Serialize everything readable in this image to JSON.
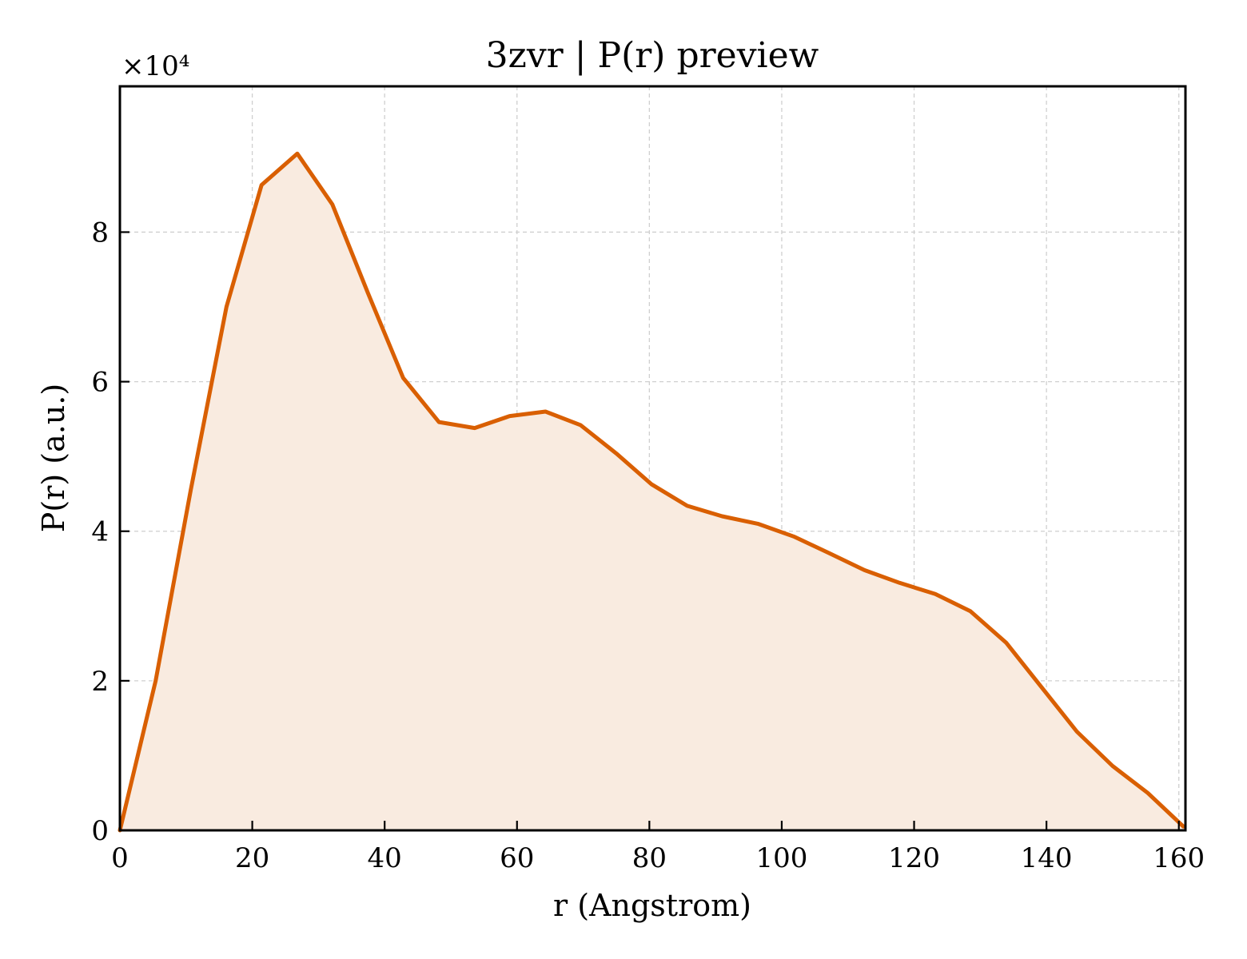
{
  "chart_data": {
    "type": "area",
    "title": "3zvr | P(r) preview",
    "xlabel": "r (Angstrom)",
    "ylabel": "P(r) (a.u.)",
    "y_multiplier_label": "×10⁴",
    "xlim": [
      0,
      161
    ],
    "ylim": [
      0,
      99500
    ],
    "x_ticks": [
      0,
      20,
      40,
      60,
      80,
      100,
      120,
      140,
      160
    ],
    "y_ticks": [
      0,
      20000,
      40000,
      60000,
      80000
    ],
    "x_tick_labels": [
      "0",
      "20",
      "40",
      "60",
      "80",
      "100",
      "120",
      "140",
      "160"
    ],
    "y_tick_labels": [
      "0",
      "2",
      "4",
      "6",
      "8"
    ],
    "grid": true,
    "line_color": "#d95f02",
    "fill_color": "#f9ebe0",
    "series": [
      {
        "x": [
          0,
          5.4,
          10.7,
          16.1,
          21.4,
          26.8,
          32.1,
          37.5,
          42.8,
          48.2,
          53.6,
          58.9,
          64.3,
          69.6,
          75.0,
          80.3,
          85.7,
          91.0,
          96.4,
          101.8,
          107.1,
          112.5,
          117.8,
          123.2,
          128.5,
          133.9,
          139.2,
          144.6,
          150.0,
          155.3,
          160.7
        ],
        "y": [
          0,
          20000,
          45500,
          70000,
          86300,
          90500,
          83700,
          71800,
          60500,
          54600,
          53800,
          55400,
          56000,
          54200,
          50400,
          46300,
          43400,
          42000,
          41000,
          39300,
          37100,
          34800,
          33100,
          31600,
          29300,
          25100,
          19200,
          13200,
          8600,
          5000,
          500
        ]
      }
    ]
  }
}
